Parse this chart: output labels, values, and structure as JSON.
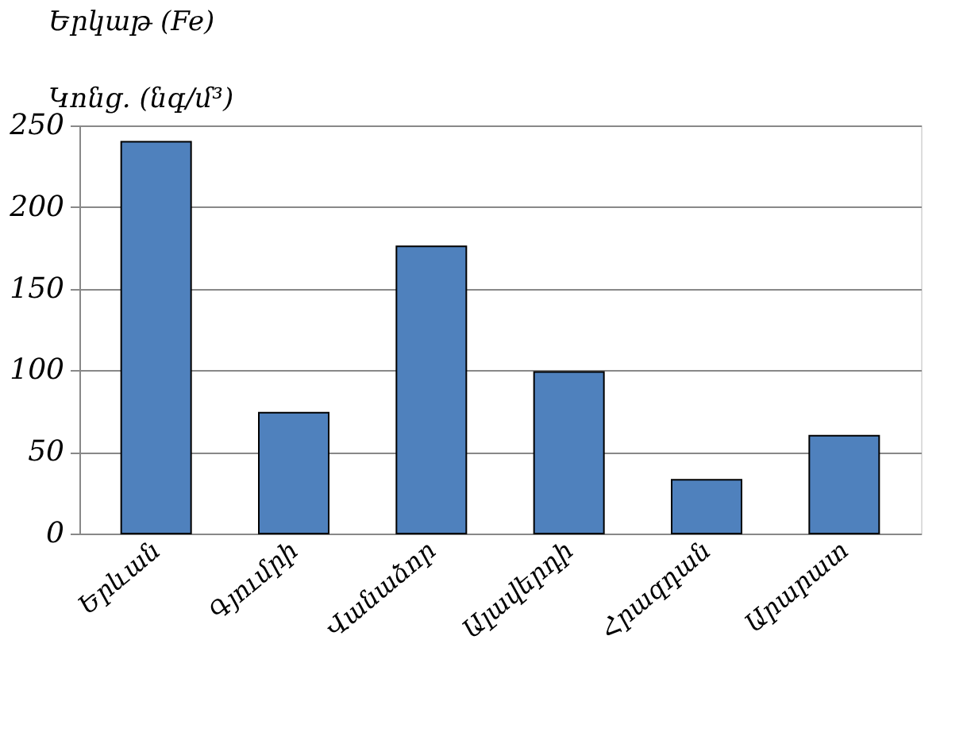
{
  "chart_data": {
    "type": "bar",
    "title": "Երկաթ (Fe)",
    "ylabel": "Կոնց. (նգ/մ³)",
    "categories": [
      "Երևան",
      "Գյումրի",
      "Վանաձոր",
      "Ալավերդի",
      "Հրազդան",
      "Արարատ"
    ],
    "values": [
      240,
      74,
      176,
      99,
      33,
      60
    ],
    "color": "#4f81bd",
    "ylim": [
      0,
      250
    ],
    "yticks": [
      0,
      50,
      100,
      150,
      200,
      250
    ],
    "grid": "y"
  }
}
